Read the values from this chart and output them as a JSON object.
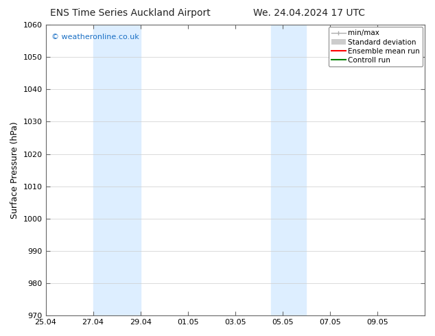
{
  "title_left": "ENS Time Series Auckland Airport",
  "title_right": "We. 24.04.2024 17 UTC",
  "ylabel": "Surface Pressure (hPa)",
  "ylim": [
    970,
    1060
  ],
  "yticks": [
    970,
    980,
    990,
    1000,
    1010,
    1020,
    1030,
    1040,
    1050,
    1060
  ],
  "xlim_start": 0,
  "xlim_end": 16,
  "xtick_labels": [
    "25.04",
    "27.04",
    "29.04",
    "01.05",
    "03.05",
    "05.05",
    "07.05",
    "09.05"
  ],
  "xtick_positions": [
    0,
    2,
    4,
    6,
    8,
    10,
    12,
    14
  ],
  "band1_start": 2.0,
  "band1_end": 4.0,
  "band2_start": 9.5,
  "band2_end": 11.0,
  "band_color": "#ddeeff",
  "watermark_text": "© weatheronline.co.uk",
  "watermark_color": "#1a6fc4",
  "bg_color": "#ffffff",
  "plot_bg_color": "#ffffff",
  "grid_color": "#cccccc",
  "title_fontsize": 10,
  "axis_label_fontsize": 9,
  "tick_fontsize": 8,
  "watermark_fontsize": 8,
  "legend_fontsize": 7.5,
  "spine_color": "#666666",
  "minmax_color": "#aaaaaa",
  "std_color": "#cccccc",
  "ensemble_color": "#ff0000",
  "control_color": "#008000"
}
